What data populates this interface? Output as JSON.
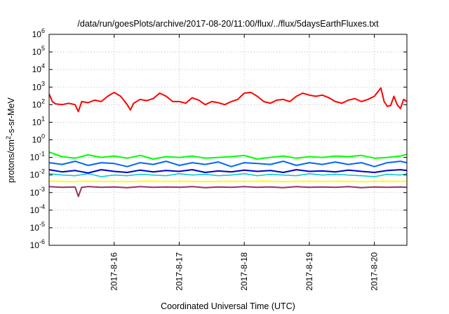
{
  "chart_data": {
    "type": "line",
    "title": "/data/run/goesPlots/archive/2017-08-20/11:00/flux/../flux/5daysEarthFluxes.txt",
    "xlabel": "Coordinated Universal Time (UTC)",
    "ylabel_main": "protons/cm",
    "ylabel_sup": "2",
    "ylabel_rest": "-s-sr-MeV",
    "yscale": "log",
    "ylim": [
      1e-06,
      1000000.0
    ],
    "xlim": [
      0,
      5.5
    ],
    "grid": true,
    "y_ticks": [
      {
        "exp": -6,
        "base": "10",
        "power": "-6"
      },
      {
        "exp": -5,
        "base": "10",
        "power": "-5"
      },
      {
        "exp": -4,
        "base": "10",
        "power": "-4"
      },
      {
        "exp": -3,
        "base": "10",
        "power": "-3"
      },
      {
        "exp": -2,
        "base": "10",
        "power": "-2"
      },
      {
        "exp": -1,
        "base": "10",
        "power": "-1"
      },
      {
        "exp": 0,
        "base": "10",
        "power": "0"
      },
      {
        "exp": 1,
        "base": "10",
        "power": "1"
      },
      {
        "exp": 2,
        "base": "10",
        "power": "2"
      },
      {
        "exp": 3,
        "base": "10",
        "power": "3"
      },
      {
        "exp": 4,
        "base": "10",
        "power": "4"
      },
      {
        "exp": 5,
        "base": "10",
        "power": "5"
      },
      {
        "exp": 6,
        "base": "10",
        "power": "6"
      }
    ],
    "x_ticks": [
      {
        "x": 1,
        "label": "2017-8-16"
      },
      {
        "x": 2,
        "label": "2017-8-17"
      },
      {
        "x": 3,
        "label": "2017-8-18"
      },
      {
        "x": 4,
        "label": "2017-8-19"
      },
      {
        "x": 5,
        "label": "2017-8-20"
      }
    ],
    "series": [
      {
        "color": "#ff0000",
        "width": 2,
        "x": [
          0,
          0.05,
          0.1,
          0.2,
          0.3,
          0.4,
          0.45,
          0.5,
          0.6,
          0.7,
          0.8,
          0.9,
          1.0,
          1.1,
          1.2,
          1.25,
          1.3,
          1.4,
          1.5,
          1.6,
          1.7,
          1.8,
          1.9,
          2.0,
          2.1,
          2.2,
          2.3,
          2.4,
          2.5,
          2.6,
          2.7,
          2.8,
          2.9,
          3.0,
          3.1,
          3.2,
          3.3,
          3.4,
          3.5,
          3.6,
          3.7,
          3.8,
          3.9,
          4.0,
          4.1,
          4.2,
          4.3,
          4.4,
          4.5,
          4.6,
          4.7,
          4.8,
          4.9,
          5.0,
          5.1,
          5.15,
          5.2,
          5.25,
          5.3,
          5.35,
          5.4,
          5.45,
          5.5
        ],
        "y": [
          400,
          150,
          110,
          100,
          120,
          100,
          40,
          150,
          130,
          180,
          150,
          300,
          500,
          300,
          100,
          50,
          120,
          200,
          170,
          220,
          450,
          300,
          150,
          150,
          120,
          250,
          180,
          100,
          150,
          130,
          100,
          150,
          200,
          450,
          500,
          300,
          150,
          120,
          180,
          200,
          150,
          300,
          450,
          350,
          300,
          350,
          250,
          150,
          120,
          180,
          220,
          150,
          200,
          300,
          900,
          150,
          80,
          90,
          300,
          100,
          60,
          200,
          150
        ]
      },
      {
        "color": "#00ff00",
        "width": 2,
        "x": [
          0,
          0.2,
          0.4,
          0.6,
          0.8,
          1.0,
          1.2,
          1.4,
          1.6,
          1.8,
          2.0,
          2.2,
          2.4,
          2.6,
          2.8,
          3.0,
          3.2,
          3.4,
          3.6,
          3.8,
          4.0,
          4.2,
          4.4,
          4.6,
          4.8,
          5.0,
          5.2,
          5.4,
          5.5
        ],
        "y": [
          0.2,
          0.11,
          0.09,
          0.14,
          0.1,
          0.12,
          0.09,
          0.13,
          0.08,
          0.11,
          0.1,
          0.12,
          0.09,
          0.1,
          0.11,
          0.13,
          0.08,
          0.1,
          0.12,
          0.09,
          0.11,
          0.1,
          0.12,
          0.11,
          0.13,
          0.09,
          0.1,
          0.12,
          0.15
        ]
      },
      {
        "color": "#0066ff",
        "width": 2,
        "x": [
          0,
          0.2,
          0.4,
          0.6,
          0.8,
          1.0,
          1.2,
          1.4,
          1.6,
          1.8,
          2.0,
          2.2,
          2.4,
          2.6,
          2.8,
          3.0,
          3.2,
          3.4,
          3.6,
          3.8,
          4.0,
          4.2,
          4.4,
          4.6,
          4.8,
          5.0,
          5.2,
          5.4,
          5.5
        ],
        "y": [
          0.05,
          0.04,
          0.06,
          0.035,
          0.05,
          0.045,
          0.03,
          0.05,
          0.04,
          0.06,
          0.035,
          0.05,
          0.04,
          0.055,
          0.03,
          0.05,
          0.045,
          0.04,
          0.06,
          0.035,
          0.05,
          0.04,
          0.055,
          0.04,
          0.05,
          0.03,
          0.05,
          0.06,
          0.05
        ]
      },
      {
        "color": "#00cccc",
        "width": 1.5,
        "x": [
          0,
          0.2,
          0.4,
          0.6,
          0.8,
          1.0,
          1.2,
          1.4,
          1.6,
          1.8,
          2.0,
          2.2,
          2.4,
          2.6,
          2.8,
          3.0,
          3.2,
          3.4,
          3.6,
          3.8,
          4.0,
          4.2,
          4.4,
          4.6,
          4.8,
          5.0,
          5.2,
          5.4,
          5.5
        ],
        "y": [
          0.012,
          0.01,
          0.009,
          0.012,
          0.008,
          0.01,
          0.009,
          0.011,
          0.01,
          0.009,
          0.012,
          0.01,
          0.011,
          0.009,
          0.01,
          0.012,
          0.009,
          0.011,
          0.01,
          0.009,
          0.012,
          0.01,
          0.011,
          0.01,
          0.009,
          0.008,
          0.011,
          0.01,
          0.012
        ]
      },
      {
        "color": "#0000cc",
        "width": 2,
        "x": [
          0,
          0.2,
          0.4,
          0.6,
          0.8,
          1.0,
          1.2,
          1.4,
          1.6,
          1.8,
          2.0,
          2.2,
          2.4,
          2.6,
          2.8,
          3.0,
          3.2,
          3.4,
          3.6,
          3.8,
          4.0,
          4.2,
          4.4,
          4.6,
          4.8,
          5.0,
          5.2,
          5.4,
          5.5
        ],
        "y": [
          0.02,
          0.015,
          0.018,
          0.013,
          0.02,
          0.016,
          0.014,
          0.019,
          0.015,
          0.018,
          0.016,
          0.02,
          0.014,
          0.017,
          0.015,
          0.019,
          0.016,
          0.018,
          0.014,
          0.02,
          0.016,
          0.017,
          0.015,
          0.019,
          0.016,
          0.014,
          0.018,
          0.02,
          0.018
        ]
      },
      {
        "color": "#ffff00",
        "width": 2,
        "x": [
          0,
          0.3,
          0.6,
          0.9,
          1.2,
          1.5,
          1.8,
          2.1,
          2.4,
          2.7,
          3.0,
          3.3,
          3.6,
          3.9,
          4.2,
          4.5,
          4.8,
          5.1,
          5.4,
          5.5
        ],
        "y": [
          0.0045,
          0.0042,
          0.0044,
          0.0043,
          0.0042,
          0.0045,
          0.0043,
          0.0044,
          0.0042,
          0.0044,
          0.0043,
          0.0045,
          0.0042,
          0.0044,
          0.0043,
          0.0044,
          0.0042,
          0.0044,
          0.0043,
          0.0044
        ]
      },
      {
        "color": "#993366",
        "width": 2,
        "x": [
          0,
          0.2,
          0.4,
          0.45,
          0.5,
          0.6,
          0.8,
          1.0,
          1.2,
          1.4,
          1.6,
          1.8,
          2.0,
          2.2,
          2.4,
          2.6,
          2.8,
          3.0,
          3.2,
          3.4,
          3.6,
          3.8,
          4.0,
          4.2,
          4.4,
          4.6,
          4.8,
          5.0,
          5.2,
          5.4,
          5.5
        ],
        "y": [
          0.0022,
          0.002,
          0.0021,
          0.0006,
          0.002,
          0.0022,
          0.002,
          0.0021,
          0.0019,
          0.0022,
          0.002,
          0.0021,
          0.002,
          0.0022,
          0.0019,
          0.0021,
          0.002,
          0.0022,
          0.002,
          0.0021,
          0.0019,
          0.0022,
          0.002,
          0.0021,
          0.002,
          0.0022,
          0.0019,
          0.0021,
          0.002,
          0.0021,
          0.002
        ]
      }
    ]
  }
}
